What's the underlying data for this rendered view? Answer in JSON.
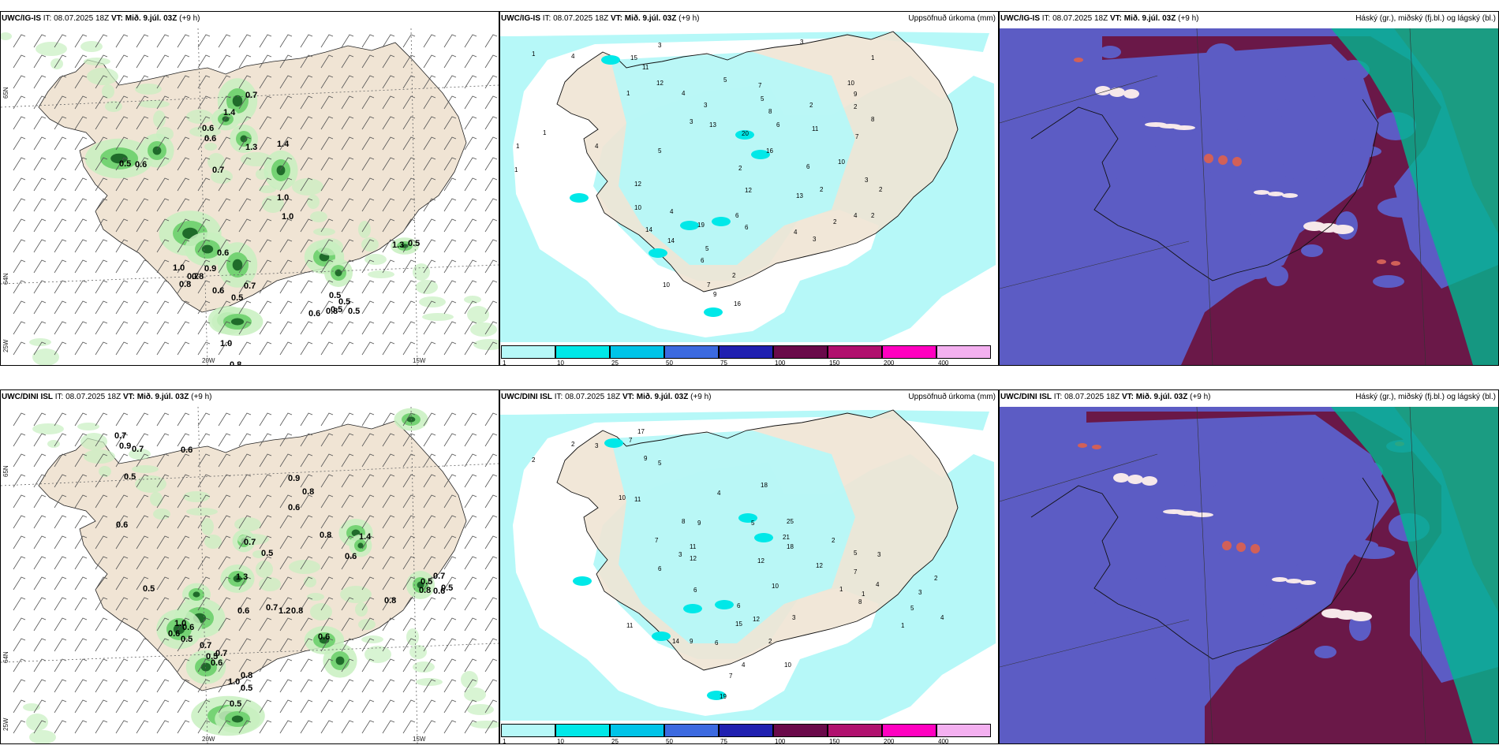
{
  "rows": [
    {
      "wind_panel": {
        "model": "UWC/IG-IS",
        "it": "IT: 08.07.2025 18Z",
        "vt": "VT: Mið. 9.júl. 03Z",
        "lead": "(+9 h)",
        "lon_labels": [
          "20W",
          "15W"
        ],
        "lat_labels": [
          "65N",
          "64N",
          "25W"
        ],
        "values": [
          "0.7",
          "1.4",
          "0.6",
          "0.6",
          "1.4",
          "0.5",
          "0.6",
          "0.7",
          "1.3",
          "1.0",
          "1.0",
          "1.3",
          "0.5",
          "0.6",
          "0.8",
          "0.7",
          "1.0",
          "0.9",
          "0.7",
          "0.8",
          "0.6",
          "0.5",
          "0.5",
          "0.5",
          "0.6",
          "0.5",
          "0.8",
          "0.5",
          "1.0",
          "0.8",
          "1.0",
          "1.3"
        ]
      },
      "precip_panel": {
        "model": "UWC/IG-IS",
        "it": "IT: 08.07.2025 18Z",
        "vt": "VT: Mið. 9.júl. 03Z",
        "lead": "(+9 h)",
        "right_title": "Uppsöfnuð úrkoma (mm)",
        "values": [
          "1",
          "3",
          "3",
          "4",
          "15",
          "11",
          "12",
          "5",
          "4",
          "3",
          "1",
          "7",
          "5",
          "8",
          "6",
          "13",
          "20",
          "16",
          "4",
          "5",
          "11",
          "3",
          "2",
          "2",
          "2",
          "8",
          "10",
          "9",
          "7",
          "6",
          "13",
          "12",
          "19",
          "4",
          "10",
          "12",
          "14",
          "14",
          "5",
          "6",
          "6",
          "4",
          "3",
          "2",
          "4",
          "2",
          "3",
          "10",
          "2",
          "10",
          "6",
          "7",
          "9",
          "16",
          "2",
          "1",
          "1",
          "1",
          "1",
          "2"
        ]
      },
      "cloud_panel": {
        "model": "UWC/IG-IS",
        "it": "IT: 08.07.2025 18Z",
        "vt": "VT: Mið. 9.júl. 03Z",
        "lead": "(+9 h)",
        "right_title": "Háský (gr.), miðský (fj.bl.) og lágský (bl.)"
      }
    },
    {
      "wind_panel": {
        "model": "UWC/DINI ISL",
        "it": "IT: 08.07.2025 18Z",
        "vt": "VT: Mið. 9.júl. 03Z",
        "lead": "(+9 h)",
        "lon_labels": [
          "20W",
          "15W"
        ],
        "lat_labels": [
          "65N",
          "64N",
          "25W"
        ],
        "values": [
          "0.7",
          "0.9",
          "0.7",
          "0.6",
          "0.5",
          "0.9",
          "0.8",
          "0.6",
          "0.6",
          "1.4",
          "0.8",
          "0.7",
          "0.5",
          "0.6",
          "1.3",
          "0.5",
          "0.5",
          "0.7",
          "0.8",
          "0.6",
          "0.8",
          "0.5",
          "0.6",
          "0.7",
          "0.8",
          "1.2",
          "1.0",
          "0.6",
          "0.6",
          "0.5",
          "0.6",
          "0.7",
          "0.7",
          "0.6",
          "0.5",
          "0.8",
          "1.0",
          "0.5",
          "0.5"
        ]
      },
      "precip_panel": {
        "model": "UWC/DINI ISL",
        "it": "IT: 08.07.2025 18Z",
        "vt": "VT: Mið. 9.júl. 03Z",
        "lead": "(+9 h)",
        "right_title": "Uppsöfnuð úrkoma (mm)",
        "values": [
          "2",
          "2",
          "3",
          "17",
          "9",
          "5",
          "4",
          "18",
          "25",
          "21",
          "18",
          "12",
          "11",
          "9",
          "5",
          "10",
          "12",
          "7",
          "6",
          "3",
          "6",
          "12",
          "8",
          "7",
          "11",
          "10",
          "6",
          "15",
          "14",
          "11",
          "9",
          "6",
          "2",
          "10",
          "4",
          "3",
          "12",
          "5",
          "3",
          "7",
          "8",
          "4",
          "5",
          "3",
          "2",
          "4",
          "1",
          "1",
          "1",
          "2",
          "19",
          "7"
        ]
      },
      "cloud_panel": {
        "model": "UWC/DINI ISL",
        "it": "IT: 08.07.2025 18Z",
        "vt": "VT: Mið. 9.júl. 03Z",
        "lead": "(+9 h)",
        "right_title": "Háský (gr.), miðský (fj.bl.) og lágský (bl.)"
      }
    }
  ],
  "colorbar": {
    "ticks": [
      "1",
      "10",
      "25",
      "50",
      "75",
      "100",
      "150",
      "200",
      "400"
    ],
    "colors": [
      "#b6f8f8",
      "#00e8e8",
      "#00c4e8",
      "#3c6ae0",
      "#2020b0",
      "#6a0a4a",
      "#b0106e",
      "#ff00c0",
      "#f4b0f0"
    ]
  },
  "map_colors": {
    "land": "#f0e4d4",
    "sea": "#ffffff",
    "precip_light": "#b6f8f8",
    "precip_mid": "#00e8e8",
    "precip_high": "#00c4e8",
    "cloud_low": "#5c5cc4",
    "cloud_mid": "#6a1848",
    "cloud_high": "#00b890"
  }
}
